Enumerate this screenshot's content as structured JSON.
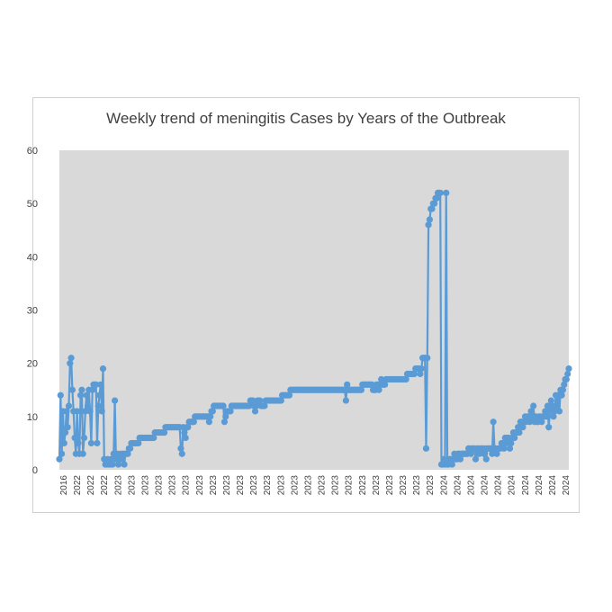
{
  "chart_data": {
    "type": "line",
    "title": "Weekly trend of meningitis Cases by Years of the Outbreak",
    "xlabel": "",
    "ylabel": "",
    "ylim": [
      0,
      60
    ],
    "yticks": [
      0,
      10,
      20,
      30,
      40,
      50,
      60
    ],
    "grid": false,
    "legend": "none",
    "colors": {
      "series": "#5b9bd5",
      "plot_bg": "#d9d9d9",
      "frame": "#d0d0d0",
      "text": "#404040"
    },
    "x_tick_labels": [
      "2016",
      "2022",
      "2022",
      "2022",
      "2023",
      "2023",
      "2023",
      "2023",
      "2023",
      "2023",
      "2023",
      "2023",
      "2023",
      "2023",
      "2023",
      "2023",
      "2023",
      "2023",
      "2023",
      "2023",
      "2023",
      "2023",
      "2023",
      "2023",
      "2023",
      "2023",
      "2023",
      "2023",
      "2024",
      "2024",
      "2024",
      "2024",
      "2024",
      "2024",
      "2024",
      "2024",
      "2024",
      "2024"
    ],
    "series": [
      {
        "values": [
          2,
          14,
          3,
          11,
          5,
          7,
          11,
          8,
          12,
          20,
          21,
          15,
          11,
          6,
          3,
          11,
          5,
          3,
          14,
          15,
          3,
          6,
          11,
          14,
          12,
          15,
          11,
          5,
          15,
          16,
          16,
          16,
          5,
          12,
          14,
          16,
          11,
          19,
          2,
          1,
          1,
          2,
          1,
          1,
          2,
          1,
          3,
          13,
          2,
          3,
          1,
          2,
          3,
          2,
          3,
          1,
          3,
          3,
          3,
          4,
          4,
          5,
          5,
          5,
          5,
          5,
          5,
          5,
          6,
          6,
          6,
          6,
          6,
          6,
          6,
          6,
          6,
          6,
          6,
          6,
          6,
          7,
          7,
          7,
          7,
          7,
          7,
          7,
          7,
          7,
          8,
          8,
          8,
          8,
          8,
          8,
          8,
          8,
          8,
          8,
          8,
          8,
          8,
          4,
          3,
          8,
          7,
          6,
          8,
          8,
          9,
          9,
          9,
          9,
          9,
          10,
          10,
          10,
          10,
          10,
          10,
          10,
          10,
          10,
          10,
          10,
          10,
          9,
          10,
          11,
          11,
          12,
          12,
          12,
          12,
          12,
          12,
          12,
          12,
          12,
          9,
          10,
          11,
          11,
          11,
          11,
          12,
          12,
          12,
          12,
          12,
          12,
          12,
          12,
          12,
          12,
          12,
          12,
          12,
          12,
          12,
          12,
          13,
          13,
          13,
          12,
          11,
          12,
          13,
          13,
          13,
          12,
          12,
          12,
          12,
          13,
          13,
          13,
          13,
          13,
          13,
          13,
          13,
          13,
          13,
          13,
          13,
          13,
          13,
          14,
          14,
          14,
          14,
          14,
          14,
          14,
          15,
          15,
          15,
          15,
          15,
          15,
          15,
          15,
          15,
          15,
          15,
          15,
          15,
          15,
          15,
          15,
          15,
          15,
          15,
          15,
          15,
          15,
          15,
          15,
          15,
          15,
          15,
          15,
          15,
          15,
          15,
          15,
          15,
          15,
          15,
          15,
          15,
          15,
          15,
          15,
          15,
          15,
          15,
          15,
          15,
          15,
          15,
          13,
          16,
          15,
          15,
          15,
          15,
          15,
          15,
          15,
          15,
          15,
          15,
          15,
          15,
          16,
          16,
          16,
          16,
          16,
          16,
          16,
          16,
          16,
          15,
          15,
          15,
          16,
          16,
          15,
          16,
          17,
          16,
          16,
          16,
          17,
          17,
          17,
          17,
          17,
          17,
          17,
          17,
          17,
          17,
          17,
          17,
          17,
          17,
          17,
          17,
          17,
          17,
          18,
          18,
          18,
          18,
          18,
          18,
          18,
          19,
          19,
          19,
          19,
          18,
          19,
          21,
          21,
          21,
          4,
          21,
          46,
          47,
          49,
          49,
          50,
          50,
          51,
          51,
          52,
          52,
          52,
          1,
          1,
          2,
          1,
          52,
          1,
          1,
          2,
          2,
          1,
          2,
          3,
          2,
          2,
          3,
          3,
          2,
          3,
          3,
          3,
          3,
          3,
          3,
          4,
          4,
          3,
          4,
          4,
          4,
          2,
          4,
          4,
          3,
          4,
          4,
          4,
          3,
          4,
          2,
          4,
          4,
          4,
          4,
          3,
          9,
          4,
          4,
          3,
          4,
          4,
          4,
          5,
          5,
          4,
          6,
          5,
          6,
          6,
          4,
          5,
          6,
          7,
          6,
          7,
          7,
          8,
          7,
          9,
          9,
          8,
          9,
          10,
          9,
          10,
          10,
          9,
          11,
          10,
          12,
          9,
          10,
          9,
          9,
          10,
          10,
          9,
          10,
          10,
          11,
          10,
          12,
          8,
          11,
          13,
          12,
          10,
          11,
          14,
          12,
          14,
          11,
          15,
          14,
          15,
          16,
          17,
          17,
          18,
          19
        ]
      }
    ]
  }
}
